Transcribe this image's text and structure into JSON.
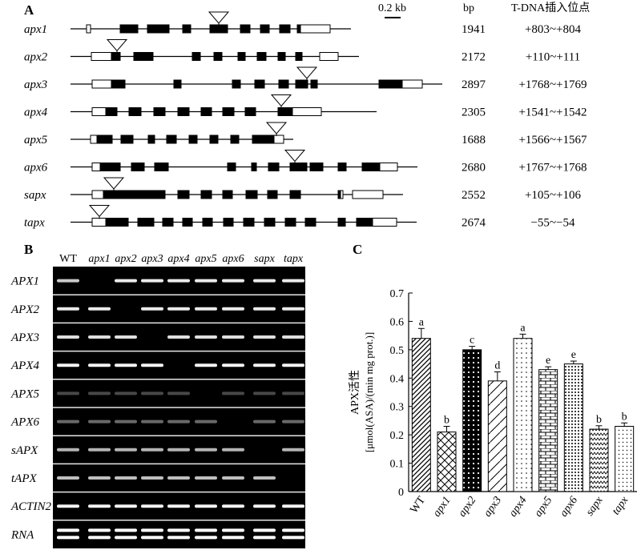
{
  "panelA": {
    "label": "A",
    "scale_label": "0.2 kb",
    "col_bp": "bp",
    "col_insert": "T-DNA插入位点",
    "genes": [
      {
        "name": "apx1",
        "bp": "1941",
        "insert": "+803~+804"
      },
      {
        "name": "apx2",
        "bp": "2172",
        "insert": "+110~+111"
      },
      {
        "name": "apx3",
        "bp": "2897",
        "insert": "+1768~+1769"
      },
      {
        "name": "apx4",
        "bp": "2305",
        "insert": "+1541~+1542"
      },
      {
        "name": "apx5",
        "bp": "1688",
        "insert": "+1566~+1567"
      },
      {
        "name": "apx6",
        "bp": "2680",
        "insert": "+1767~+1768"
      },
      {
        "name": "sapx",
        "bp": "2552",
        "insert": "+105~+106"
      },
      {
        "name": "tapx",
        "bp": "2674",
        "insert": "−55~−54"
      }
    ]
  },
  "panelB": {
    "label": "B",
    "lanes": [
      "WT",
      "apx1",
      "apx2",
      "apx3",
      "apx4",
      "apx5",
      "apx6",
      "sapx",
      "tapx"
    ],
    "rows": [
      "APX1",
      "APX2",
      "APX3",
      "APX4",
      "APX5",
      "APX6",
      "sAPX",
      "tAPX",
      "ACTIN2",
      "RNA"
    ],
    "band_intensity": [
      [
        0.75,
        0,
        0.9,
        0.9,
        0.9,
        0.9,
        0.9,
        0.9,
        0.9
      ],
      [
        0.9,
        0.9,
        0,
        0.9,
        0.9,
        0.9,
        0.9,
        0.9,
        0.9
      ],
      [
        0.85,
        0.85,
        0.85,
        0,
        0.85,
        0.85,
        0.85,
        0.85,
        0.85
      ],
      [
        0.95,
        0.95,
        0.95,
        0.95,
        0,
        0.95,
        0.95,
        0.95,
        0.95
      ],
      [
        0.15,
        0.15,
        0.15,
        0.15,
        0.15,
        0,
        0.15,
        0.15,
        0.15
      ],
      [
        0.3,
        0.3,
        0.3,
        0.3,
        0.3,
        0.3,
        0,
        0.3,
        0.3
      ],
      [
        0.65,
        0.65,
        0.65,
        0.65,
        0.65,
        0.65,
        0.65,
        0,
        0.65
      ],
      [
        0.7,
        0.7,
        0.7,
        0.7,
        0.7,
        0.7,
        0.7,
        0.7,
        0
      ],
      [
        0.95,
        0.95,
        0.95,
        0.95,
        0.95,
        0.95,
        0.95,
        0.95,
        0.95
      ],
      [
        1,
        1,
        1,
        1,
        1,
        1,
        1,
        1,
        1
      ]
    ]
  },
  "panelC": {
    "label": "C",
    "chart_data": {
      "type": "bar",
      "categories": [
        "WT",
        "apx1",
        "apx2",
        "apx3",
        "apx4",
        "apx5",
        "apx6",
        "sapx",
        "tapx"
      ],
      "values": [
        0.54,
        0.21,
        0.5,
        0.39,
        0.54,
        0.43,
        0.45,
        0.22,
        0.23
      ],
      "errors": [
        0.035,
        0.02,
        0.012,
        0.032,
        0.015,
        0.01,
        0.01,
        0.012,
        0.012
      ],
      "significance_letters": [
        "a",
        "b",
        "c",
        "d",
        "a",
        "e",
        "e",
        "b",
        "b"
      ],
      "fill_patterns": [
        "diagonal-lines",
        "crosshatch",
        "black-dots",
        "wide-diagonal",
        "sparse-dots",
        "brick",
        "dense-dots",
        "zigzag",
        "fine-dots"
      ],
      "ylabel_line1": "APX活性",
      "ylabel_line2": "[μmol(ASA)/(min mg prot.)]",
      "ylim": [
        0,
        0.7
      ],
      "yticks": [
        "0",
        "0.1",
        "0.2",
        "0.3",
        "0.4",
        "0.5",
        "0.6",
        "0.7"
      ],
      "grid": false
    }
  }
}
